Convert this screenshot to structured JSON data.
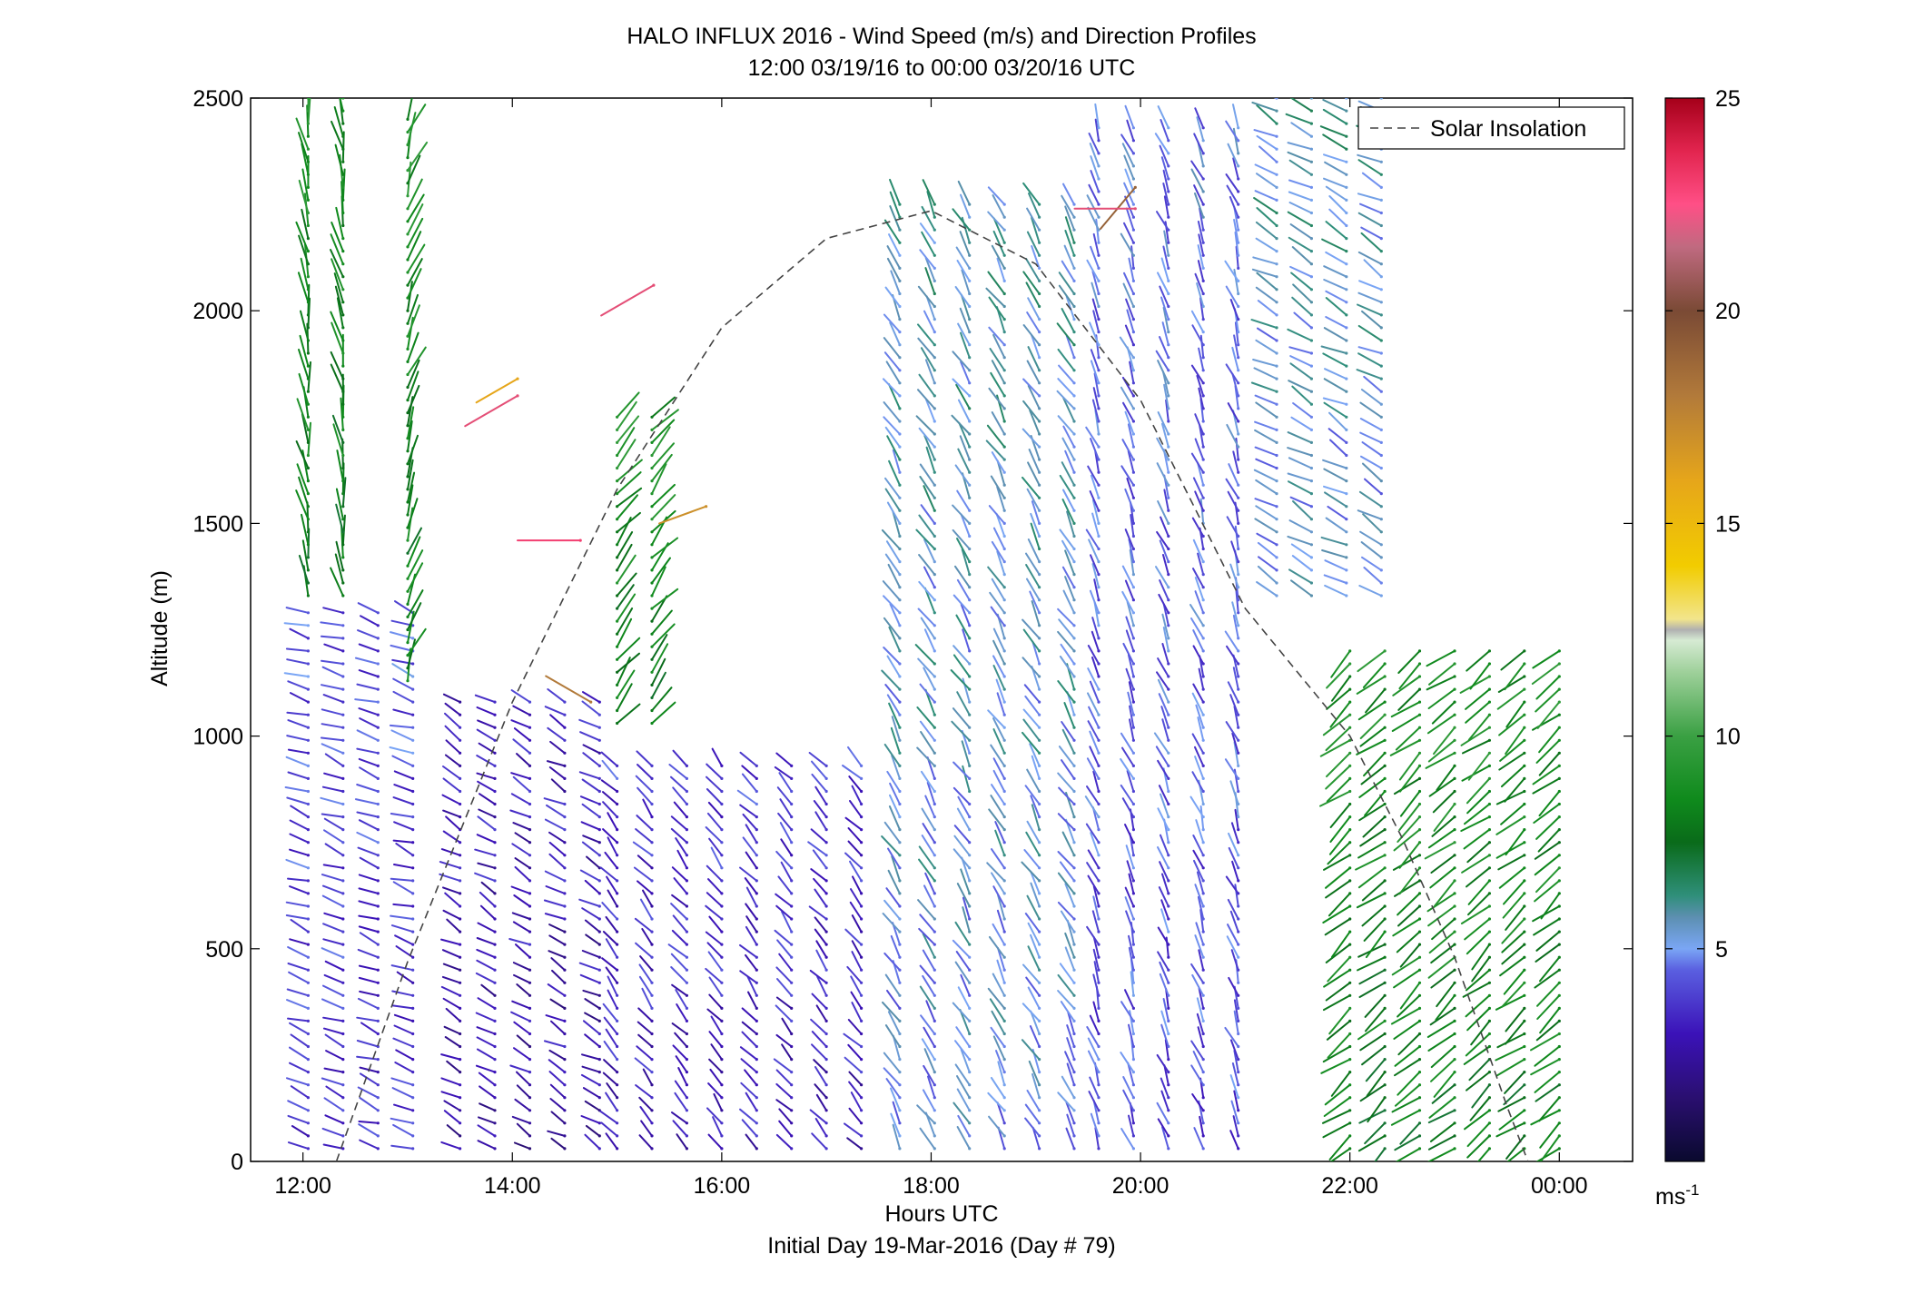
{
  "title_line1": "HALO INFLUX 2016 - Wind Speed (m/s) and Direction Profiles",
  "title_line2": "12:00 03/19/16 to 00:00 03/20/16  UTC",
  "xlabel": "Hours UTC",
  "xlabel_sub": "Initial Day 19-Mar-2016 (Day # 79)",
  "ylabel": "Altitude (m)",
  "legend_label": "Solar Insolation",
  "colorbar_unit_base": "ms",
  "colorbar_unit_exp": "-1",
  "chart_data": {
    "type": "scatter",
    "subtype": "wind-barb-profile",
    "title": "HALO INFLUX 2016 - Wind Speed (m/s) and Direction Profiles",
    "subtitle": "12:00 03/19/16 to 00:00 03/20/16  UTC",
    "xlabel": "Hours UTC",
    "ylabel": "Altitude (m)",
    "xlim": [
      11.5,
      24.7
    ],
    "ylim": [
      0,
      2500
    ],
    "x_ticks": [
      12,
      14,
      16,
      18,
      20,
      22,
      24
    ],
    "x_tick_labels": [
      "12:00",
      "14:00",
      "16:00",
      "18:00",
      "20:00",
      "22:00",
      "00:00"
    ],
    "y_ticks": [
      0,
      500,
      1000,
      1500,
      2000,
      2500
    ],
    "y_tick_labels": [
      "0",
      "500",
      "1000",
      "1500",
      "2000",
      "2500"
    ],
    "colorbar": {
      "label": "ms-1",
      "range": [
        0,
        25
      ],
      "ticks": [
        5,
        10,
        15,
        20,
        25
      ],
      "tick_labels": [
        "5",
        "10",
        "15",
        "20",
        "25"
      ]
    },
    "legend": {
      "entries": [
        "Solar Insolation"
      ],
      "position": "top-right"
    },
    "grid": false,
    "profile_interval_hours": 0.3333,
    "solar_insolation": {
      "name": "Solar Insolation",
      "style": "dashed",
      "color": "#444444",
      "points": [
        [
          12.32,
          0
        ],
        [
          13.0,
          470
        ],
        [
          14.0,
          1080
        ],
        [
          15.0,
          1580
        ],
        [
          16.0,
          1960
        ],
        [
          17.0,
          2170
        ],
        [
          18.0,
          2235
        ],
        [
          19.0,
          2110
        ],
        [
          20.0,
          1790
        ],
        [
          21.0,
          1300
        ],
        [
          22.0,
          1000
        ],
        [
          22.5,
          760
        ],
        [
          23.0,
          480
        ],
        [
          23.5,
          130
        ],
        [
          23.7,
          0
        ]
      ]
    },
    "wind_regions": [
      {
        "x": [
          12.05,
          12.45
        ],
        "alt": [
          1300,
          2500
        ],
        "speed": 8,
        "dir": 350
      },
      {
        "x": [
          12.05,
          13.3
        ],
        "alt": [
          0,
          1300
        ],
        "speed": 3.5,
        "dir": 290
      },
      {
        "x": [
          13.0,
          13.3
        ],
        "alt": [
          1100,
          2450
        ],
        "speed": 8,
        "dir": 20
      },
      {
        "x": [
          13.5,
          14.9
        ],
        "alt": [
          0,
          1100
        ],
        "speed": 2.5,
        "dir": 300
      },
      {
        "x": [
          15.0,
          15.4
        ],
        "alt": [
          1000,
          1750
        ],
        "speed": 8,
        "dir": 40
      },
      {
        "x": [
          15.0,
          17.6
        ],
        "alt": [
          0,
          950
        ],
        "speed": 3,
        "dir": 320
      },
      {
        "x": [
          17.7,
          19.4
        ],
        "alt": [
          0,
          2250
        ],
        "speed": 5,
        "dir": 330
      },
      {
        "x": [
          19.6,
          21.2
        ],
        "alt": [
          0,
          2450
        ],
        "speed": 4,
        "dir": 340
      },
      {
        "x": [
          21.3,
          22.5
        ],
        "alt": [
          1300,
          2500
        ],
        "speed": 5,
        "dir": 300
      },
      {
        "x": [
          22.0,
          24.0
        ],
        "alt": [
          0,
          1200
        ],
        "speed": 8,
        "dir": 230
      }
    ],
    "isolated_barbs": [
      {
        "x": 14.05,
        "alt": 1840,
        "speed": 16,
        "dir": 240
      },
      {
        "x": 14.05,
        "alt": 1800,
        "speed": 22,
        "dir": 240
      },
      {
        "x": 15.35,
        "alt": 2060,
        "speed": 22,
        "dir": 240
      },
      {
        "x": 14.65,
        "alt": 1460,
        "speed": 23,
        "dir": 270
      },
      {
        "x": 15.85,
        "alt": 1540,
        "speed": 17,
        "dir": 250
      },
      {
        "x": 14.75,
        "alt": 1080,
        "speed": 18,
        "dir": 300
      },
      {
        "x": 19.95,
        "alt": 2290,
        "speed": 19,
        "dir": 220
      },
      {
        "x": 19.95,
        "alt": 2240,
        "speed": 22,
        "dir": 270
      }
    ]
  }
}
